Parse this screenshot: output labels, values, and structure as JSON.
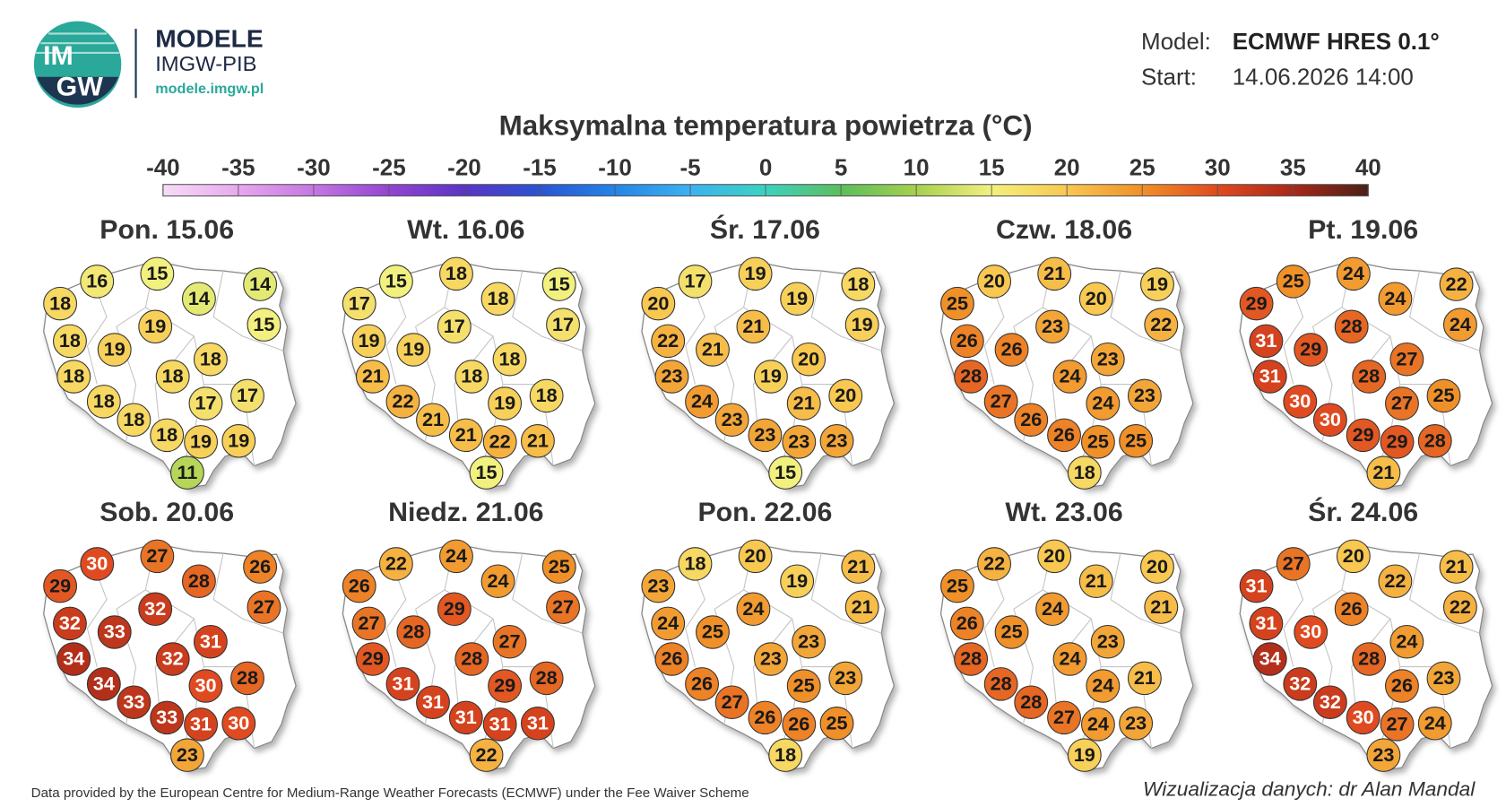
{
  "header": {
    "logo_text": [
      "IM",
      "GW"
    ],
    "brand": "MODELE",
    "org": "IMGW-PIB",
    "url": "modele.imgw.pl",
    "model_label": "Model:",
    "model": "ECMWF HRES 0.1°",
    "start_label": "Start:",
    "start": "14.06.2026 14:00"
  },
  "title": "Maksymalna temperatura powietrza (°C)",
  "colorbar": {
    "ticks": [
      -40,
      -35,
      -30,
      -25,
      -20,
      -15,
      -10,
      -5,
      0,
      5,
      10,
      15,
      20,
      25,
      30,
      35,
      40
    ],
    "colors": [
      "#f6dcf6",
      "#e8a8ee",
      "#c476e2",
      "#9444d2",
      "#5a34c4",
      "#2a54d2",
      "#2484e6",
      "#3cb2f0",
      "#3cd2c0",
      "#5cbe5c",
      "#a6d04e",
      "#f2f07e",
      "#f8c850",
      "#f09028",
      "#e04a20",
      "#a82818",
      "#4a2018"
    ]
  },
  "panels": [
    {
      "date": "Pon. 15.06",
      "values": [
        18,
        16,
        15,
        14,
        14,
        15,
        18,
        19,
        19,
        18,
        18,
        18,
        18,
        17,
        17,
        18,
        18,
        19,
        19,
        11
      ]
    },
    {
      "date": "Wt. 16.06",
      "values": [
        17,
        15,
        18,
        18,
        15,
        17,
        19,
        19,
        17,
        21,
        18,
        18,
        22,
        18,
        19,
        21,
        21,
        22,
        21,
        15
      ]
    },
    {
      "date": "Śr. 17.06",
      "values": [
        20,
        17,
        19,
        19,
        18,
        19,
        22,
        21,
        21,
        23,
        20,
        19,
        24,
        20,
        21,
        23,
        23,
        23,
        23,
        15
      ]
    },
    {
      "date": "Czw. 18.06",
      "values": [
        25,
        20,
        21,
        20,
        19,
        22,
        26,
        26,
        23,
        28,
        23,
        24,
        27,
        23,
        24,
        26,
        26,
        25,
        25,
        18
      ]
    },
    {
      "date": "Pt. 19.06",
      "values": [
        29,
        25,
        24,
        24,
        22,
        24,
        31,
        29,
        28,
        31,
        27,
        28,
        30,
        25,
        27,
        30,
        29,
        29,
        28,
        21
      ]
    },
    {
      "date": "Sob. 20.06",
      "values": [
        29,
        30,
        27,
        28,
        26,
        27,
        32,
        33,
        32,
        34,
        31,
        32,
        34,
        28,
        30,
        33,
        33,
        31,
        30,
        23
      ]
    },
    {
      "date": "Niedz. 21.06",
      "values": [
        26,
        22,
        24,
        24,
        25,
        27,
        27,
        28,
        29,
        29,
        27,
        28,
        31,
        28,
        29,
        31,
        31,
        31,
        31,
        22
      ]
    },
    {
      "date": "Pon. 22.06",
      "values": [
        23,
        18,
        20,
        19,
        21,
        21,
        24,
        25,
        24,
        26,
        23,
        23,
        26,
        23,
        25,
        27,
        26,
        26,
        25,
        18
      ]
    },
    {
      "date": "Wt. 23.06",
      "values": [
        25,
        22,
        20,
        21,
        20,
        21,
        26,
        25,
        24,
        28,
        23,
        24,
        28,
        21,
        24,
        28,
        27,
        24,
        23,
        19
      ]
    },
    {
      "date": "Śr. 24.06",
      "values": [
        31,
        27,
        20,
        22,
        21,
        22,
        31,
        30,
        26,
        34,
        24,
        28,
        32,
        23,
        26,
        32,
        30,
        27,
        24,
        23
      ]
    }
  ],
  "footer": {
    "source": "Data provided by the European Centre for Medium-Range Weather Forecasts (ECMWF) under the Fee Waiver Scheme",
    "credit": "Wizualizacja danych: dr Alan Mandal"
  }
}
